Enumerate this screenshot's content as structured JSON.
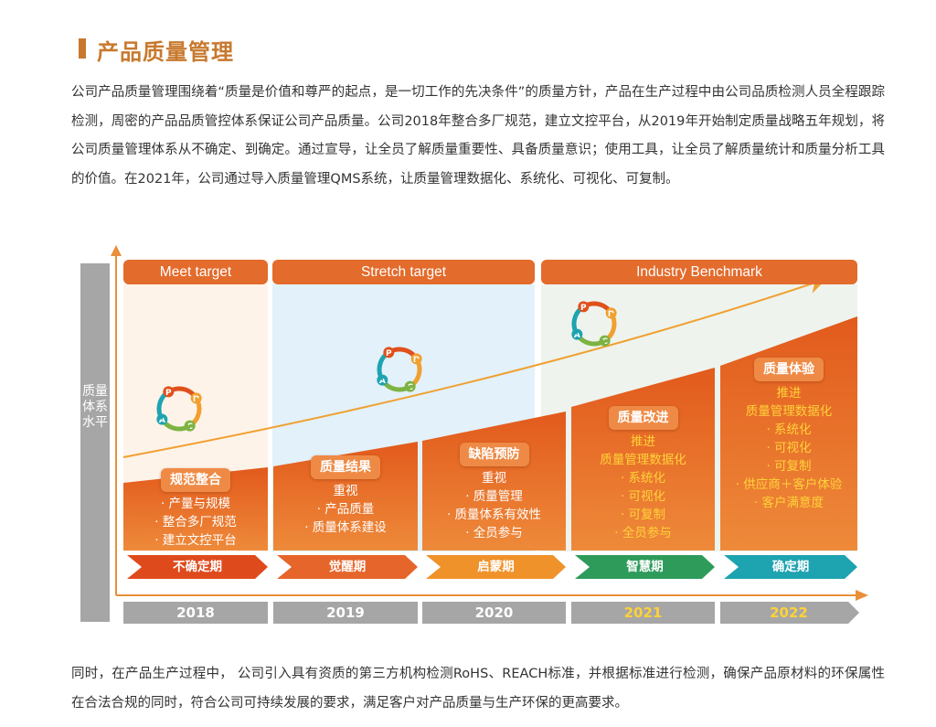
{
  "title": "产品质量管理",
  "intro": "公司产品质量管理围绕着“质量是价值和尊严的起点，是一切工作的先决条件”的质量方针，产品在生产过程中由公司品质检测人员全程跟踪检测，周密的产品品质管控体系保证公司产品质量。公司2018年整合多厂规范，建立文控平台，从2019年开始制定质量战略五年规划，将公司质量管理体系从不确定、到确定。通过宣导，让全员了解质量重要性、具备质量意识；使用工具，让全员了解质量统计和质量分析工具的价值。在2021年，公司通过导入质量管理QMS系统，让质量管理数据化、系统化、可视化、可复制。",
  "diagram": {
    "y_axis_label": "质量体系 水平",
    "targets": [
      "Meet target",
      "Stretch target",
      "Industry Benchmark"
    ],
    "cycle_letters": [
      "P",
      "D",
      "C",
      "A"
    ],
    "stages": [
      {
        "badge": "规范整合",
        "lines": [
          "· 产量与规模",
          "· 整合多厂规范",
          "· 建立文控平台"
        ],
        "phase": "不确定期",
        "phase_color": "#df4a1c",
        "year": "2018"
      },
      {
        "badge": "质量结果",
        "lines": [
          "重视",
          "· 产品质量",
          "· 质量体系建设"
        ],
        "phase": "觉醒期",
        "phase_color": "#e5652a",
        "year": "2019"
      },
      {
        "badge": "缺陷预防",
        "lines": [
          "重视",
          "· 质量管理",
          "· 质量体系有效性",
          "· 全员参与"
        ],
        "phase": "启蒙期",
        "phase_color": "#f0922a",
        "year": "2020"
      },
      {
        "badge": "质量改进",
        "lines": [
          "推进",
          "质量管理数据化",
          "· 系统化",
          "· 可视化",
          "· 可复制",
          "· 全员参与"
        ],
        "phase": "智慧期",
        "phase_color": "#2e9b5b",
        "year": "2021"
      },
      {
        "badge": "质量体验",
        "lines": [
          "推进",
          "质量管理数据化",
          "· 系统化",
          "· 可视化",
          "· 可复制",
          "· 供应商＋客户体验",
          "· 客户满意度"
        ],
        "phase": "确定期",
        "phase_color": "#1ea3b0",
        "year": "2022"
      }
    ],
    "colors": {
      "orange": "#e36b2c",
      "gray": "#a6a6a6",
      "highlight_text": "#ffd23a"
    }
  },
  "outro": "同时，在产品生产过程中， 公司引入具有资质的第三方机构检测RoHS、REACH标准，并根据标准进行检测，确保产品原材料的环保属性在合法合规的同时，符合公司可持续发展的要求，满足客户对产品质量与生产环保的更高要求。"
}
